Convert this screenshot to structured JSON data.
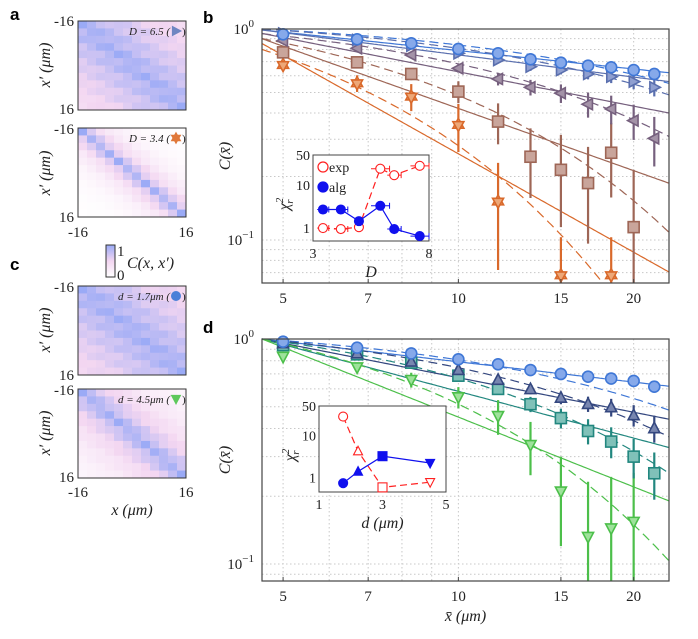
{
  "panel_labels": {
    "a": "a",
    "b": "b",
    "c": "c",
    "d": "d"
  },
  "heatmaps": {
    "tick_min": "-16",
    "tick_max": "16",
    "ylabel": "x′ (μm)",
    "xlabel": "x (μm)",
    "colorbar": {
      "max": "1",
      "min": "0",
      "label": "C(x, x′)",
      "colors": [
        "#ffffff",
        "#f3d6f1",
        "#9aaaf6"
      ]
    },
    "items": [
      {
        "id": "a1",
        "annotation": "D = 6.5 (",
        "marker": "tri-right",
        "marker_color": "#6f86c2",
        "correlation_decay_cells": 14
      },
      {
        "id": "a2",
        "annotation": "D = 3.4 (",
        "marker": "star",
        "marker_color": "#e0783a",
        "correlation_decay_cells": 2.6
      },
      {
        "id": "c1",
        "annotation": "d = 1.7μm (",
        "marker": "circle",
        "marker_color": "#4a80d8",
        "correlation_decay_cells": 16
      },
      {
        "id": "c2",
        "annotation": "d = 4.5μm (",
        "marker": "tri-down",
        "marker_color": "#5ec85c",
        "correlation_decay_cells": 5.5
      }
    ]
  },
  "chart_data": [
    {
      "id": "b",
      "type": "scatter",
      "ylabel": "C(x̄)",
      "xlabel": "",
      "xscale": "log",
      "yscale": "log",
      "xlim": [
        4.6,
        23
      ],
      "ylim": [
        0.0625,
        1
      ],
      "xticks": [
        5,
        7,
        10,
        15,
        20
      ],
      "xtick_labels": [
        "5",
        "7",
        "10",
        "15",
        "20"
      ],
      "yticks": [
        {
          "value": 1,
          "base": "10",
          "exp": "0"
        },
        {
          "value": 0.1,
          "base": "10",
          "exp": "−1"
        }
      ],
      "grid": true,
      "series": [
        {
          "name": "D=6.5 (circle)",
          "marker": "circle",
          "stroke": "#3f77d6",
          "fill": "#86a9ea",
          "x": [
            5,
            6.7,
            8.3,
            10,
            11.7,
            13.3,
            15,
            16.7,
            18.3,
            20,
            21.7
          ],
          "y": [
            0.944,
            0.894,
            0.855,
            0.804,
            0.767,
            0.718,
            0.692,
            0.67,
            0.658,
            0.639,
            0.612
          ],
          "err": [
            0.01,
            0.01,
            0.01,
            0.012,
            0.012,
            0.014,
            0.015,
            0.016,
            0.017,
            0.018,
            0.02
          ],
          "fit_power": {
            "A": 0.966,
            "p": 0.29
          },
          "fit_exp": {
            "A": 0.987,
            "xi": 31
          }
        },
        {
          "name": "D=6.5 (tri-right)",
          "marker": "tri-right",
          "stroke": "#5a6fae",
          "fill": "#8f9fd0",
          "x": [
            5,
            6.7,
            8.3,
            10,
            11.7,
            13.3,
            15,
            16.7,
            18.3,
            20,
            21.7
          ],
          "y": [
            0.953,
            0.887,
            0.834,
            0.767,
            0.713,
            0.663,
            0.639,
            0.612,
            0.594,
            0.563,
            0.529
          ],
          "err": [
            0.01,
            0.012,
            0.015,
            0.02,
            0.025,
            0.03,
            0.03,
            0.035,
            0.04,
            0.045,
            0.05
          ],
          "fit_power": {
            "A": 0.961,
            "p": 0.35
          },
          "fit_exp": {
            "A": 0.984,
            "xi": 25.6
          }
        },
        {
          "name": "tri-left",
          "marker": "tri-left",
          "stroke": "#76607e",
          "fill": "#a493a8",
          "x": [
            5,
            6.7,
            8.3,
            10,
            11.7,
            13.3,
            15,
            16.7,
            18.3,
            20,
            21.7
          ],
          "y": [
            0.88,
            0.81,
            0.753,
            0.651,
            0.58,
            0.529,
            0.496,
            0.44,
            0.418,
            0.368,
            0.303
          ],
          "err": [
            0.015,
            0.02,
            0.025,
            0.03,
            0.04,
            0.045,
            0.05,
            0.06,
            0.065,
            0.07,
            0.08
          ],
          "fit_power": {
            "A": 0.911,
            "p": 0.54
          },
          "fit_exp": {
            "A": 0.927,
            "xi": 16.4
          }
        },
        {
          "name": "square",
          "marker": "square",
          "stroke": "#9e6656",
          "fill": "#c9a59b",
          "x": [
            5,
            6.7,
            8.3,
            10,
            11.7,
            13.3,
            15,
            16.7,
            18.3,
            20
          ],
          "y": [
            0.775,
            0.695,
            0.612,
            0.505,
            0.364,
            0.248,
            0.215,
            0.186,
            0.259,
            0.115
          ],
          "err": [
            0.02,
            0.03,
            0.04,
            0.06,
            0.08,
            0.09,
            0.1,
            0.09,
            0.1,
            0.1
          ],
          "fit_power": {
            "A": 0.829,
            "p": 0.98
          },
          "fit_exp": {
            "A": 0.86,
            "xi": 8.7
          }
        },
        {
          "name": "D=3.4 (star)",
          "marker": "star",
          "stroke": "#d9692b",
          "fill": "#eda878",
          "x": [
            5,
            6.7,
            8.3,
            10,
            11.7,
            15,
            18.3
          ],
          "y": [
            0.675,
            0.553,
            0.478,
            0.351,
            0.152,
            0.068,
            0.068
          ],
          "err": [
            0.04,
            0.05,
            0.07,
            0.09,
            0.08,
            0.035,
            0.035
          ],
          "fit_power": {
            "A": 0.75,
            "p": 1.55
          },
          "fit_exp": {
            "A": 0.74,
            "xi": 5.14
          }
        }
      ],
      "inset": {
        "xlabel": "D",
        "ylabel": {
          "base": "χ",
          "sup": "2",
          "sub": "r"
        },
        "xscale": "linear",
        "yscale": "log",
        "xlim": [
          3,
          8
        ],
        "ylim": [
          0.5,
          50
        ],
        "xtick_labels": [
          {
            "value": 3,
            "label": "3"
          },
          {
            "value": 8,
            "label": "8"
          }
        ],
        "ytick_labels": [
          {
            "value": 50,
            "label": "50"
          },
          {
            "value": 10,
            "label": "10"
          },
          {
            "value": 1,
            "label": "1"
          }
        ],
        "legend": [
          {
            "label": "exp",
            "color": "#ff2020",
            "filled": false
          },
          {
            "label": "alg",
            "color": "#1010ee",
            "filled": true
          }
        ],
        "series": [
          {
            "name": "exp",
            "color": "#ff2020",
            "filled": false,
            "dashed": true,
            "x": [
              3.43,
              4.2,
              4.98,
              5.9,
              6.5,
              7.6
            ],
            "y": [
              1.0,
              0.95,
              1.05,
              24,
              17,
              28
            ],
            "xerr": [
              0.25,
              0.3,
              0.15,
              0.4,
              0.3,
              0.4
            ]
          },
          {
            "name": "alg",
            "color": "#1010ee",
            "filled": true,
            "dashed": false,
            "x": [
              3.43,
              4.2,
              4.98,
              5.9,
              6.5,
              7.6
            ],
            "y": [
              2.7,
              2.7,
              1.45,
              3.3,
              0.95,
              0.65
            ],
            "xerr": [
              0.25,
              0.3,
              0.15,
              0.4,
              0.3,
              0.4
            ]
          }
        ]
      }
    },
    {
      "id": "d",
      "type": "scatter",
      "ylabel": "C(x̄)",
      "xlabel": "x̄ (μm)",
      "xscale": "log",
      "yscale": "log",
      "xlim": [
        4.6,
        23
      ],
      "ylim": [
        0.084,
        1
      ],
      "xticks": [
        5,
        7,
        10,
        15,
        20
      ],
      "xtick_labels": [
        "5",
        "7",
        "10",
        "15",
        "20"
      ],
      "yticks": [
        {
          "value": 1,
          "base": "10",
          "exp": "0"
        },
        {
          "value": 0.1,
          "base": "10",
          "exp": "−1"
        }
      ],
      "grid": true,
      "series": [
        {
          "name": "d=1.7μm (circle)",
          "marker": "circle",
          "stroke": "#3f77d6",
          "fill": "#86a9ea",
          "x": [
            5,
            6.7,
            8.3,
            10,
            11.7,
            13.3,
            15,
            16.7,
            18.3,
            20,
            21.7
          ],
          "y": [
            0.973,
            0.915,
            0.863,
            0.812,
            0.772,
            0.728,
            0.699,
            0.68,
            0.667,
            0.651,
            0.614
          ],
          "err": [
            0.01,
            0.01,
            0.01,
            0.012,
            0.012,
            0.014,
            0.015,
            0.016,
            0.017,
            0.018,
            0.02
          ],
          "fit_power": {
            "A": 0.975,
            "p": 0.3
          },
          "fit_exp": {
            "A": 0.984,
            "xi": 25.3
          }
        },
        {
          "name": "tri-up",
          "marker": "tri-up",
          "stroke": "#34477f",
          "fill": "#7886b0",
          "x": [
            5,
            6.7,
            8.3,
            10,
            11.7,
            13.3,
            15,
            16.7,
            18.3,
            20,
            21.7
          ],
          "y": [
            0.957,
            0.863,
            0.793,
            0.728,
            0.658,
            0.598,
            0.548,
            0.514,
            0.497,
            0.458,
            0.401
          ],
          "err": [
            0.01,
            0.015,
            0.02,
            0.025,
            0.03,
            0.03,
            0.035,
            0.04,
            0.045,
            0.05,
            0.055
          ],
          "fit_power": {
            "A": 0.958,
            "p": 0.51
          },
          "fit_exp": {
            "A": 0.978,
            "xi": 18.4
          }
        },
        {
          "name": "square",
          "marker": "square",
          "stroke": "#22877f",
          "fill": "#80c1b9",
          "x": [
            5,
            6.7,
            8.3,
            10,
            11.7,
            13.3,
            15,
            16.7,
            18.3,
            20,
            21.7
          ],
          "y": [
            0.94,
            0.855,
            0.785,
            0.687,
            0.6,
            0.513,
            0.445,
            0.39,
            0.35,
            0.3,
            0.253
          ],
          "err": [
            0.01,
            0.015,
            0.02,
            0.03,
            0.035,
            0.04,
            0.045,
            0.05,
            0.055,
            0.06,
            0.06
          ],
          "fit_power": {
            "A": 0.944,
            "p": 0.69
          },
          "fit_exp": {
            "A": 0.97,
            "xi": 13.4
          }
        },
        {
          "name": "d=4.5μm (tri-down)",
          "marker": "tri-down",
          "stroke": "#4cbf4a",
          "fill": "#9ee29b",
          "x": [
            5,
            6.7,
            8.3,
            10,
            11.7,
            13.3,
            15,
            16.7,
            18.3,
            20
          ],
          "y": [
            0.834,
            0.748,
            0.658,
            0.551,
            0.455,
            0.338,
            0.21,
            0.132,
            0.144,
            0.154
          ],
          "err": [
            0.02,
            0.03,
            0.05,
            0.06,
            0.08,
            0.09,
            0.09,
            0.1,
            0.1,
            0.1
          ],
          "fit_power": {
            "A": 0.918,
            "p": 1.03
          },
          "fit_exp": {
            "A": 0.952,
            "xi": 8.1
          }
        }
      ],
      "inset": {
        "xlabel": "d (μm)",
        "ylabel": {
          "base": "χ",
          "sup": "2",
          "sub": "r"
        },
        "xscale": "linear",
        "yscale": "log",
        "xlim": [
          1,
          5
        ],
        "ylim": [
          0.45,
          50
        ],
        "xtick_labels": [
          {
            "value": 1,
            "label": "1"
          },
          {
            "value": 3,
            "label": "3"
          },
          {
            "value": 5,
            "label": "5"
          }
        ],
        "ytick_labels": [
          {
            "value": 50,
            "label": "50"
          },
          {
            "value": 10,
            "label": "10"
          },
          {
            "value": 1,
            "label": "1"
          }
        ],
        "legend": [],
        "series": [
          {
            "name": "exp",
            "color": "#ff2020",
            "filled": false,
            "dashed": true,
            "x": [
              1.76,
              2.23,
              3.0,
              4.5
            ],
            "y": [
              28,
              4.2,
              0.58,
              0.77
            ],
            "markers": [
              "circle",
              "tri-up",
              "square",
              "tri-down"
            ]
          },
          {
            "name": "alg",
            "color": "#1010ee",
            "filled": true,
            "dashed": false,
            "x": [
              1.76,
              2.23,
              3.0,
              4.5
            ],
            "y": [
              0.73,
              1.38,
              3.2,
              2.2
            ],
            "markers": [
              "circle",
              "tri-up",
              "square",
              "tri-down"
            ]
          }
        ]
      }
    }
  ]
}
